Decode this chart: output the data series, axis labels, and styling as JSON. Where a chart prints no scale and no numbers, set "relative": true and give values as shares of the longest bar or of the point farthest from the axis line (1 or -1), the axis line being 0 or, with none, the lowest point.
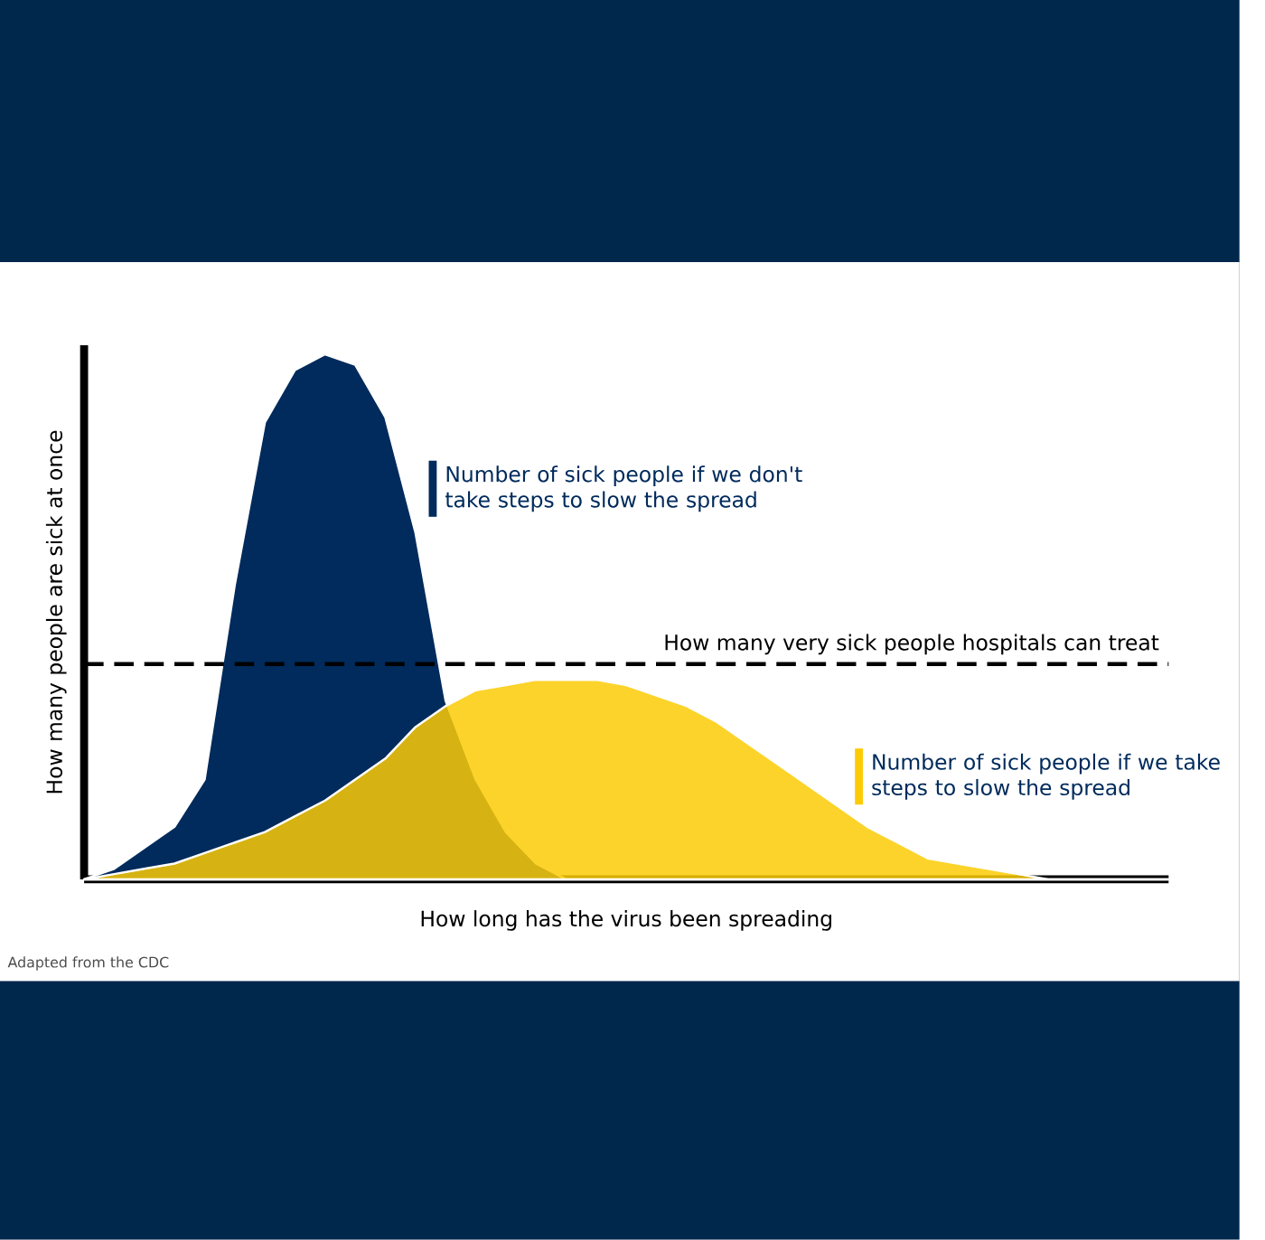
{
  "chart_data": {
    "type": "area",
    "relative": true,
    "xlabel": "How long has the virus been spreading",
    "ylabel": "How many people are sick at once",
    "categories": [
      null,
      null,
      null,
      null,
      null,
      null,
      null,
      null,
      null,
      null,
      null,
      null,
      null,
      null,
      null,
      null,
      null,
      null,
      null,
      null,
      null,
      null,
      null,
      null,
      null,
      null,
      null,
      null,
      null,
      null,
      null,
      null,
      null,
      null,
      null,
      null,
      null
    ],
    "series": [
      {
        "name": "Number of sick people if we don't take steps to slow the spread",
        "color": "#002b5c",
        "values": [
          0,
          0.02,
          0.06,
          0.1,
          0.19,
          0.56,
          0.87,
          0.97,
          1,
          0.98,
          0.88,
          0.66,
          0.34,
          0.19,
          0.09,
          0.03,
          0,
          0,
          0,
          0,
          0,
          0,
          0,
          0,
          0,
          0,
          0,
          0,
          0,
          0,
          0,
          0,
          0,
          0,
          0,
          0,
          0
        ]
      },
      {
        "name": "Number of sick people if we take steps to slow the spread",
        "color": "#fccb05",
        "values": [
          0,
          0.01,
          0.02,
          0.03,
          0.05,
          0.07,
          0.09,
          0.12,
          0.15,
          0.19,
          0.23,
          0.29,
          0.33,
          0.36,
          0.37,
          0.38,
          0.38,
          0.38,
          0.37,
          0.35,
          0.33,
          0.3,
          0.26,
          0.22,
          0.18,
          0.14,
          0.1,
          0.07,
          0.04,
          0.03,
          0.02,
          0.01,
          0,
          0,
          0,
          0,
          0
        ]
      }
    ],
    "ref_lines": [
      {
        "axis": "y",
        "value": 0.41,
        "label": "How many very sick people hospitals can treat",
        "line_style": "dashed"
      }
    ],
    "annotations": [
      "Adapted from the CDC"
    ]
  }
}
